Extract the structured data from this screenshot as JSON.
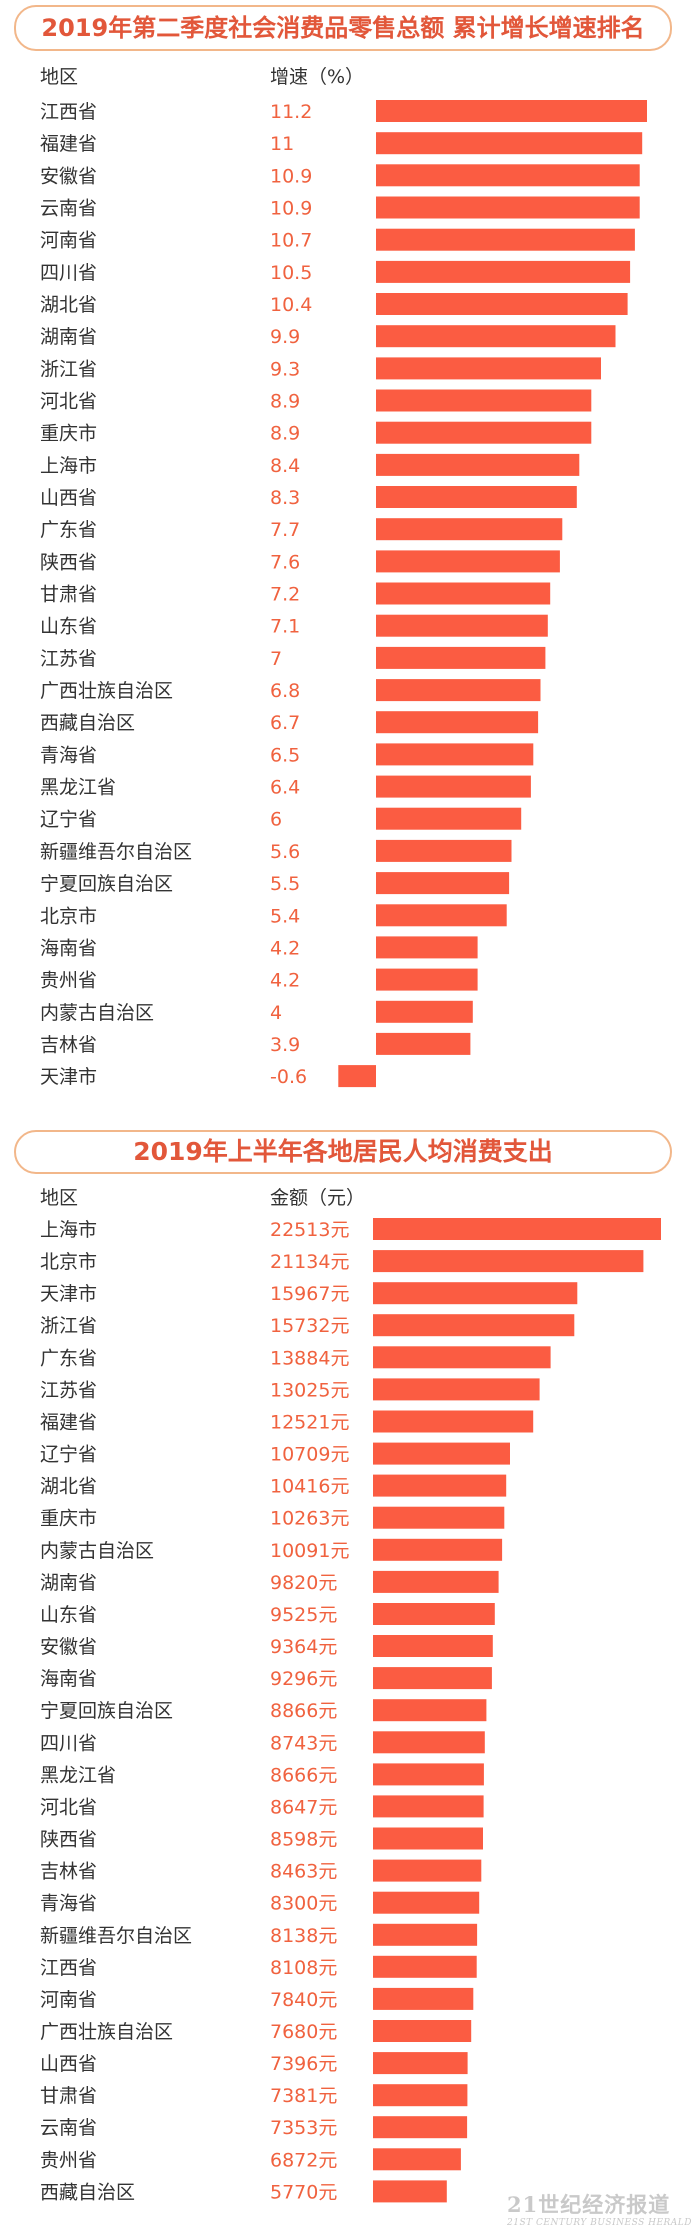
{
  "colors": {
    "bar": "#fb5c42",
    "value_text": "#f0623f",
    "label_text": "#333333",
    "title_text": "#e2573a",
    "title_border": "#f2b78a"
  },
  "chart_data": [
    {
      "type": "bar",
      "title": "2019年第二季度社会消费品零售总额 累计增长增速排名",
      "header_region": "地区",
      "header_value": "增速（%）",
      "value_suffix": "",
      "categories": [
        "江西省",
        "福建省",
        "安徽省",
        "云南省",
        "河南省",
        "四川省",
        "湖北省",
        "湖南省",
        "浙江省",
        "河北省",
        "重庆市",
        "上海市",
        "山西省",
        "广东省",
        "陕西省",
        "甘肃省",
        "山东省",
        "江苏省",
        "广西壮族自治区",
        "西藏自治区",
        "青海省",
        "黑龙江省",
        "辽宁省",
        "新疆维吾尔自治区",
        "宁夏回族自治区",
        "北京市",
        "海南省",
        "贵州省",
        "内蒙古自治区",
        "吉林省",
        "天津市"
      ],
      "values": [
        11.2,
        11,
        10.9,
        10.9,
        10.7,
        10.5,
        10.4,
        9.9,
        9.3,
        8.9,
        8.9,
        8.4,
        8.3,
        7.7,
        7.6,
        7.2,
        7.1,
        7,
        6.8,
        6.7,
        6.5,
        6.4,
        6,
        5.6,
        5.5,
        5.4,
        4.2,
        4.2,
        4,
        3.9,
        -0.6
      ],
      "value_labels": [
        "11.2",
        "11",
        "10.9",
        "10.9",
        "10.7",
        "10.5",
        "10.4",
        "9.9",
        "9.3",
        "8.9",
        "8.9",
        "8.4",
        "8.3",
        "7.7",
        "7.6",
        "7.2",
        "7.1",
        "7",
        "6.8",
        "6.7",
        "6.5",
        "6.4",
        "6",
        "5.6",
        "5.5",
        "5.4",
        "4.2",
        "4.2",
        "4",
        "3.9",
        "-0.6"
      ],
      "xlim": [
        0,
        11.2
      ]
    },
    {
      "type": "bar",
      "title": "2019年上半年各地居民人均消费支出",
      "header_region": "地区",
      "header_value": "金额（元）",
      "value_suffix": "元",
      "categories": [
        "上海市",
        "北京市",
        "天津市",
        "浙江省",
        "广东省",
        "江苏省",
        "福建省",
        "辽宁省",
        "湖北省",
        "重庆市",
        "内蒙古自治区",
        "湖南省",
        "山东省",
        "安徽省",
        "海南省",
        "宁夏回族自治区",
        "四川省",
        "黑龙江省",
        "河北省",
        "陕西省",
        "吉林省",
        "青海省",
        "新疆维吾尔自治区",
        "江西省",
        "河南省",
        "广西壮族自治区",
        "山西省",
        "甘肃省",
        "云南省",
        "贵州省",
        "西藏自治区"
      ],
      "values": [
        22513,
        21134,
        15967,
        15732,
        13884,
        13025,
        12521,
        10709,
        10416,
        10263,
        10091,
        9820,
        9525,
        9364,
        9296,
        8866,
        8743,
        8666,
        8647,
        8598,
        8463,
        8300,
        8138,
        8108,
        7840,
        7680,
        7396,
        7381,
        7353,
        6872,
        5770
      ],
      "value_labels": [
        "22513元",
        "21134元",
        "15967元",
        "15732元",
        "13884元",
        "13025元",
        "12521元",
        "10709元",
        "10416元",
        "10263元",
        "10091元",
        "9820元",
        "9525元",
        "9364元",
        "9296元",
        "8866元",
        "8743元",
        "8666元",
        "8647元",
        "8598元",
        "8463元",
        "8300元",
        "8138元",
        "8108元",
        "7840元",
        "7680元",
        "7396元",
        "7381元",
        "7353元",
        "6872元",
        "5770元"
      ],
      "xlim": [
        0,
        22513
      ]
    }
  ],
  "watermark": {
    "main": "21世纪经济报道",
    "sub": "21ST CENTURY BUSINESS HERALD"
  }
}
